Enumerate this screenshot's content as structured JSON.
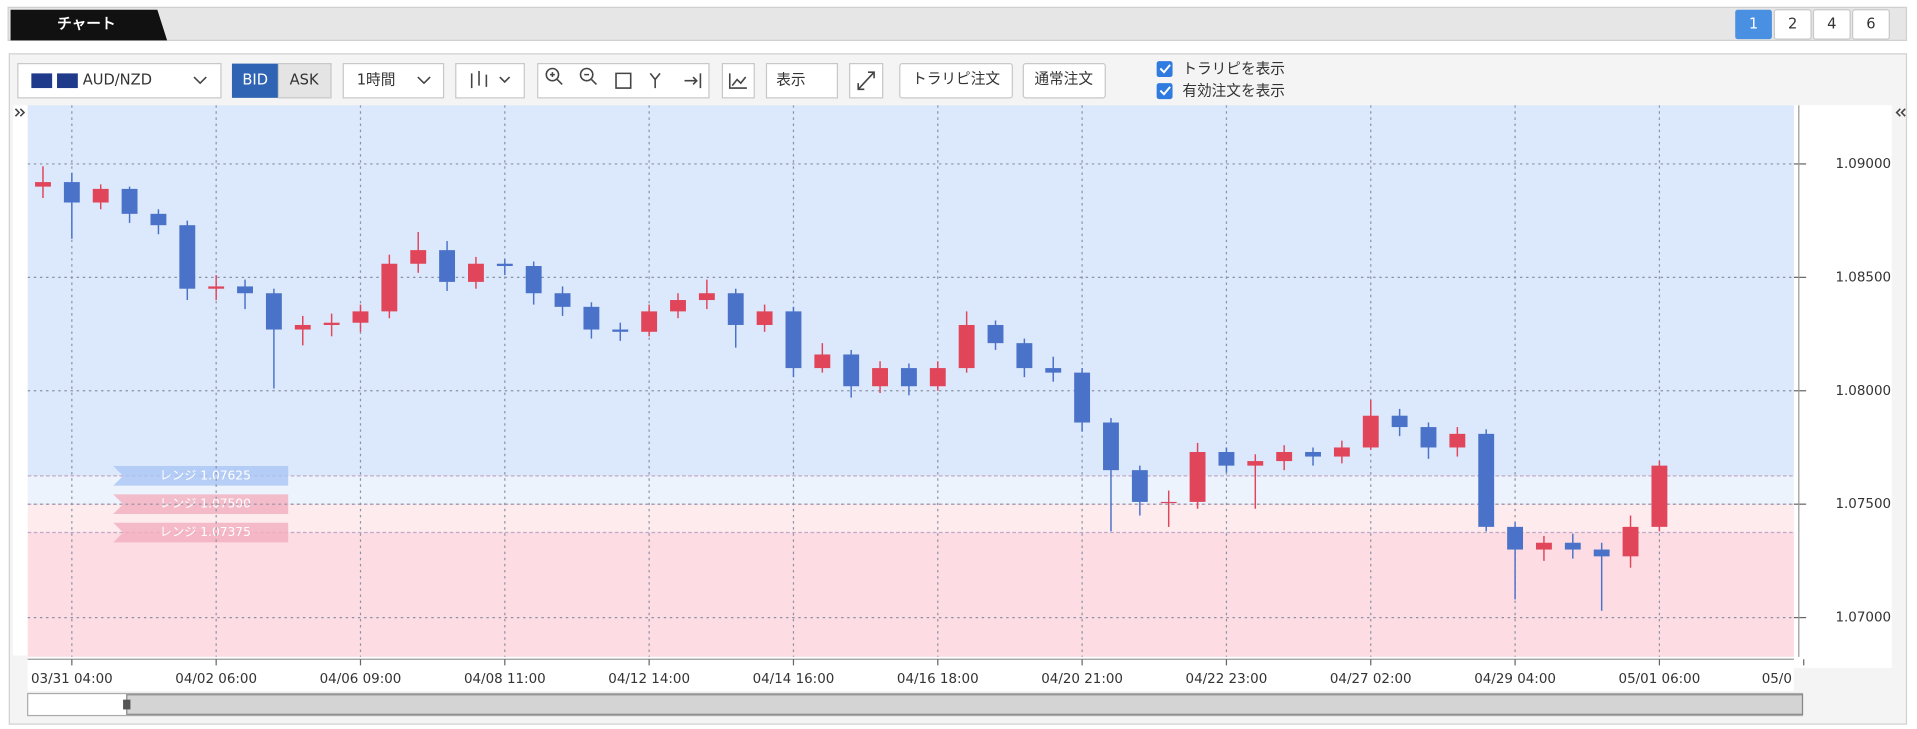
{
  "header": {
    "tab": "チャート",
    "pages": [
      "1",
      "2",
      "4",
      "6"
    ]
  },
  "toolbar": {
    "pair": "AUD/NZD",
    "bid": "BID",
    "ask": "ASK",
    "timeframe": "1時間",
    "display": "表示",
    "trap_order": "トラリピ注文",
    "normal_order": "通常注文",
    "checkboxes": [
      "トラリピを表示",
      "有効注文を表示"
    ]
  },
  "chart_data": {
    "type": "candlestick",
    "up_color": "#e0455a",
    "down_color": "#4a72c8",
    "x": [
      1,
      2,
      3,
      4,
      5,
      6,
      7,
      8,
      9,
      10,
      11,
      12,
      13,
      14,
      15,
      16,
      17,
      18,
      19,
      20,
      21,
      22,
      23,
      24,
      25,
      26,
      27,
      28,
      29,
      30,
      31,
      32,
      33,
      34,
      35,
      36,
      37,
      38,
      39,
      40,
      41,
      42,
      43,
      44,
      45,
      46,
      47,
      48,
      49,
      50,
      51,
      52,
      53,
      54,
      55,
      56,
      57
    ],
    "open": [
      1.089,
      1.0892,
      1.0883,
      1.0889,
      1.0878,
      1.0873,
      1.0845,
      1.0846,
      1.0843,
      1.0827,
      1.0829,
      1.083,
      1.0835,
      1.0856,
      1.0862,
      1.0848,
      1.0856,
      1.0855,
      1.0843,
      1.0837,
      1.0827,
      1.0826,
      1.0835,
      1.084,
      1.0843,
      1.0829,
      1.0835,
      1.081,
      1.0816,
      1.0802,
      1.081,
      1.0802,
      1.081,
      1.0829,
      1.0821,
      1.081,
      1.0808,
      1.0786,
      1.0765,
      1.0751,
      1.0751,
      1.0773,
      1.0767,
      1.0769,
      1.0773,
      1.0771,
      1.0775,
      1.0789,
      1.0784,
      1.0775,
      1.0781,
      1.074,
      1.073,
      1.0733,
      1.073,
      1.0727,
      1.074
    ],
    "high": [
      1.0899,
      1.0896,
      1.0891,
      1.089,
      1.088,
      1.0875,
      1.0851,
      1.0849,
      1.0845,
      1.0833,
      1.0834,
      1.0838,
      1.086,
      1.087,
      1.0866,
      1.0859,
      1.0858,
      1.0857,
      1.0846,
      1.0839,
      1.083,
      1.0838,
      1.0843,
      1.0849,
      1.0845,
      1.0838,
      1.0837,
      1.0821,
      1.0818,
      1.0813,
      1.0812,
      1.0813,
      1.0835,
      1.0831,
      1.0823,
      1.0815,
      1.081,
      1.0788,
      1.0767,
      1.0756,
      1.0777,
      1.0775,
      1.0772,
      1.0776,
      1.0775,
      1.0778,
      1.0796,
      1.0792,
      1.0786,
      1.0784,
      1.0783,
      1.0742,
      1.0736,
      1.0737,
      1.0733,
      1.0745,
      1.0769
    ],
    "low": [
      1.0885,
      1.0867,
      1.088,
      1.0874,
      1.0869,
      1.084,
      1.084,
      1.0836,
      1.0801,
      1.082,
      1.0824,
      1.0826,
      1.0832,
      1.0852,
      1.0844,
      1.0845,
      1.0851,
      1.0838,
      1.0833,
      1.0823,
      1.0822,
      1.0824,
      1.0832,
      1.0836,
      1.0819,
      1.0826,
      1.0806,
      1.0808,
      1.0797,
      1.0799,
      1.0798,
      1.08,
      1.0808,
      1.0818,
      1.0806,
      1.0804,
      1.0782,
      1.0738,
      1.0745,
      1.074,
      1.0748,
      1.0764,
      1.0748,
      1.0765,
      1.0767,
      1.0768,
      1.0774,
      1.078,
      1.077,
      1.0771,
      1.0738,
      1.0708,
      1.0725,
      1.0726,
      1.0703,
      1.0722,
      1.0738
    ],
    "close": [
      1.0892,
      1.0883,
      1.0889,
      1.0878,
      1.0873,
      1.0845,
      1.0846,
      1.0843,
      1.0827,
      1.0829,
      1.083,
      1.0835,
      1.0856,
      1.0862,
      1.0848,
      1.0856,
      1.0855,
      1.0843,
      1.0837,
      1.0827,
      1.0826,
      1.0835,
      1.084,
      1.0843,
      1.0829,
      1.0835,
      1.081,
      1.0816,
      1.0802,
      1.081,
      1.0802,
      1.081,
      1.0829,
      1.0821,
      1.081,
      1.0808,
      1.0786,
      1.0765,
      1.0751,
      1.0751,
      1.0773,
      1.0767,
      1.0769,
      1.0773,
      1.0771,
      1.0775,
      1.0789,
      1.0784,
      1.0775,
      1.0781,
      1.074,
      1.073,
      1.0733,
      1.073,
      1.0727,
      1.074,
      1.0767
    ],
    "xlim": [
      0.47,
      61.66
    ],
    "ylim": [
      1.06827,
      1.09259
    ],
    "xticks": [
      {
        "value": 2,
        "label": "03/31 04:00"
      },
      {
        "value": 7,
        "label": "04/02 06:00"
      },
      {
        "value": 12,
        "label": "04/06 09:00"
      },
      {
        "value": 17,
        "label": "04/08 11:00"
      },
      {
        "value": 22,
        "label": "04/12 14:00"
      },
      {
        "value": 27,
        "label": "04/14 16:00"
      },
      {
        "value": 32,
        "label": "04/16 18:00"
      },
      {
        "value": 37,
        "label": "04/20 21:00"
      },
      {
        "value": 42,
        "label": "04/22 23:00"
      },
      {
        "value": 47,
        "label": "04/27 02:00"
      },
      {
        "value": 52,
        "label": "04/29 04:00"
      },
      {
        "value": 57,
        "label": "05/01 06:00"
      },
      {
        "value": 62,
        "label": "05/0"
      }
    ],
    "yticks": [
      {
        "value": 1.07,
        "label": "1.07000"
      },
      {
        "value": 1.075,
        "label": "1.07500"
      },
      {
        "value": 1.08,
        "label": "1.08000"
      },
      {
        "value": 1.085,
        "label": "1.08500"
      },
      {
        "value": 1.09,
        "label": "1.09000"
      }
    ],
    "grid": true,
    "ranges": [
      {
        "label": "レンジ 1.07625",
        "value": 1.07625
      },
      {
        "label": "レンジ 1.07500",
        "value": 1.075
      },
      {
        "label": "レンジ 1.07375",
        "value": 1.07375
      }
    ],
    "band_colors": [
      "#dce8fb",
      "#edf3fd",
      "#fdebee",
      "#fddde3"
    ]
  }
}
